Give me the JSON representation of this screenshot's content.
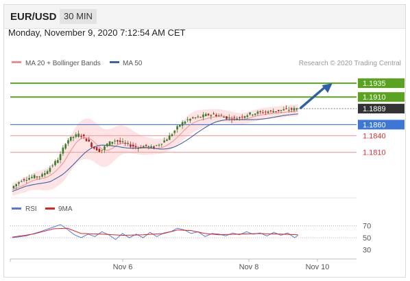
{
  "header": {
    "symbol": "EUR/USD",
    "timeframe": "30 MIN"
  },
  "timestamp": "Monday, November 9, 2020 7:12:54 AM CET",
  "copyright": "Research © 2020 Trading Central",
  "colors": {
    "resistance": "#5aa320",
    "support": "#f2a3a3",
    "support_label": "#d92f2f",
    "pivot": "#3c77d6",
    "ma20": "#ef8e8e",
    "ma50": "#3a63a8",
    "band_fill": "#fde0e0",
    "arrow": "#2f5fa6",
    "rsi": "#5577dd",
    "rsi_ma": "#dd2222",
    "current_price": "#333333",
    "candle_up": "#3a7d2a",
    "candle_down": "#b22222"
  },
  "chart_data": [
    {
      "type": "line",
      "title": "",
      "legend": [
        {
          "name": "MA 20 + Bollinger Bands",
          "color": "#ef8e8e"
        },
        {
          "name": "MA 50",
          "color": "#3a63a8"
        }
      ],
      "x_ticks": [
        "Nov 6",
        "Nov 8",
        "Nov 10"
      ],
      "ylim": [
        1.1725,
        1.1955
      ],
      "levels": [
        {
          "value": 1.1935,
          "label": "1.1935",
          "kind": "resistance"
        },
        {
          "value": 1.191,
          "label": "1.1910",
          "kind": "resistance"
        },
        {
          "value": 1.1889,
          "label": "1.1889",
          "kind": "current"
        },
        {
          "value": 1.186,
          "label": "1.1860",
          "kind": "pivot"
        },
        {
          "value": 1.184,
          "label": "1.1840",
          "kind": "support"
        },
        {
          "value": 1.181,
          "label": "1.1810",
          "kind": "support"
        }
      ],
      "price_path": [
        [
          0,
          1.1745
        ],
        [
          3,
          1.176
        ],
        [
          6,
          1.1765
        ],
        [
          9,
          1.1768
        ],
        [
          11,
          1.178
        ],
        [
          14,
          1.18
        ],
        [
          16,
          1.183
        ],
        [
          18,
          1.1838
        ],
        [
          20,
          1.1843
        ],
        [
          22,
          1.1832
        ],
        [
          24,
          1.1818
        ],
        [
          26,
          1.1812
        ],
        [
          28,
          1.1825
        ],
        [
          30,
          1.1832
        ],
        [
          32,
          1.1828
        ],
        [
          35,
          1.1822
        ],
        [
          37,
          1.1818
        ],
        [
          39,
          1.1822
        ],
        [
          41,
          1.1818
        ],
        [
          43,
          1.1825
        ],
        [
          45,
          1.1833
        ],
        [
          47,
          1.1845
        ],
        [
          49,
          1.186
        ],
        [
          51,
          1.1868
        ],
        [
          53,
          1.1872
        ],
        [
          55,
          1.1874
        ],
        [
          57,
          1.1878
        ],
        [
          59,
          1.1878
        ],
        [
          61,
          1.1876
        ],
        [
          63,
          1.1872
        ],
        [
          65,
          1.1871
        ],
        [
          67,
          1.1875
        ],
        [
          69,
          1.1879
        ],
        [
          72,
          1.1882
        ],
        [
          75,
          1.1884
        ],
        [
          78,
          1.1886
        ],
        [
          80,
          1.1887
        ],
        [
          82,
          1.1888
        ],
        [
          83,
          1.1889
        ]
      ],
      "target_arrow": {
        "from": [
          83,
          1.1889
        ],
        "to": [
          93,
          1.1935
        ]
      }
    },
    {
      "type": "line",
      "legend": [
        {
          "name": "RSI",
          "color": "#5577dd"
        },
        {
          "name": "9MA",
          "color": "#dd2222"
        }
      ],
      "y_ticks": [
        70,
        50,
        30
      ],
      "ylim": [
        20,
        80
      ],
      "rsi_path": [
        [
          0,
          50
        ],
        [
          4,
          53
        ],
        [
          8,
          60
        ],
        [
          12,
          68
        ],
        [
          14,
          72
        ],
        [
          16,
          64
        ],
        [
          18,
          55
        ],
        [
          20,
          50
        ],
        [
          22,
          56
        ],
        [
          24,
          52
        ],
        [
          26,
          60
        ],
        [
          28,
          55
        ],
        [
          30,
          47
        ],
        [
          32,
          57
        ],
        [
          34,
          50
        ],
        [
          36,
          56
        ],
        [
          38,
          50
        ],
        [
          40,
          59
        ],
        [
          42,
          52
        ],
        [
          44,
          58
        ],
        [
          46,
          60
        ],
        [
          48,
          66
        ],
        [
          50,
          63
        ],
        [
          52,
          57
        ],
        [
          54,
          60
        ],
        [
          56,
          52
        ],
        [
          58,
          57
        ],
        [
          60,
          56
        ],
        [
          62,
          53
        ],
        [
          64,
          58
        ],
        [
          66,
          55
        ],
        [
          68,
          60
        ],
        [
          70,
          56
        ],
        [
          72,
          58
        ],
        [
          74,
          53
        ],
        [
          76,
          59
        ],
        [
          78,
          54
        ],
        [
          80,
          58
        ],
        [
          82,
          50
        ],
        [
          83,
          54
        ]
      ],
      "rsi_ma_path": [
        [
          0,
          51
        ],
        [
          6,
          56
        ],
        [
          12,
          65
        ],
        [
          16,
          66
        ],
        [
          20,
          57
        ],
        [
          26,
          56
        ],
        [
          32,
          54
        ],
        [
          38,
          55
        ],
        [
          44,
          57
        ],
        [
          48,
          63
        ],
        [
          52,
          62
        ],
        [
          56,
          57
        ],
        [
          60,
          55
        ],
        [
          66,
          56
        ],
        [
          72,
          57
        ],
        [
          78,
          56
        ],
        [
          83,
          55
        ]
      ]
    }
  ]
}
